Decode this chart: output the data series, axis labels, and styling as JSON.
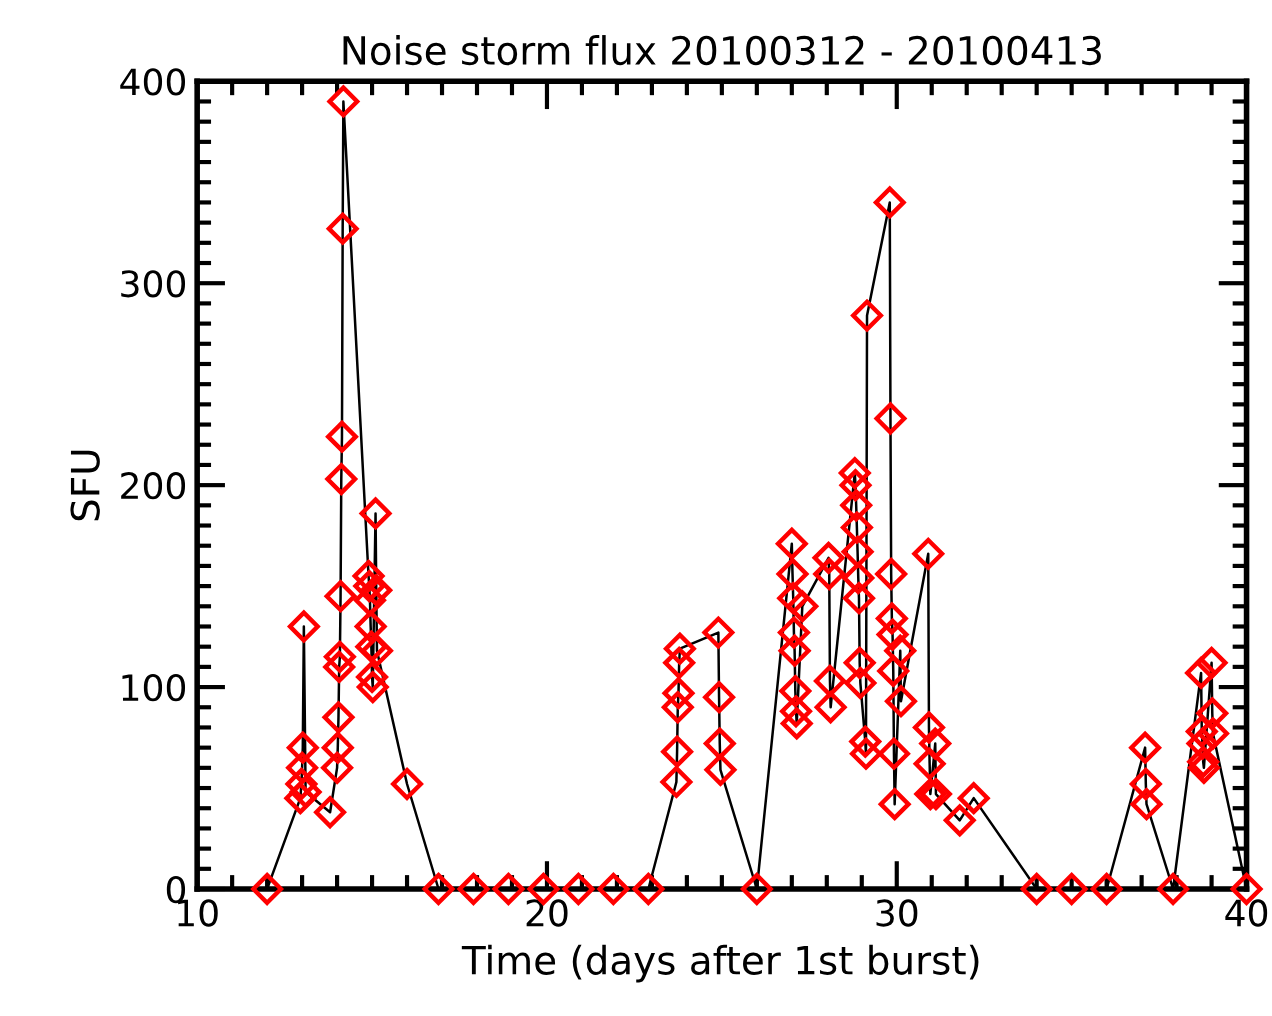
{
  "chart_data": {
    "type": "line",
    "title": "Noise storm flux 20100312 - 20100413",
    "xlabel": "Time (days after 1st burst)",
    "ylabel": "SFU",
    "xlim": [
      10,
      40
    ],
    "ylim": [
      0,
      400
    ],
    "xticks": [
      10,
      20,
      30,
      40
    ],
    "yticks": [
      0,
      100,
      200,
      300,
      400
    ],
    "marker": "diamond",
    "line_style": "solid",
    "grid": false,
    "series": [
      {
        "color": "#ff0000",
        "x": [
          12.0,
          12.95,
          12.98,
          13.0,
          13.02,
          13.05,
          13.1,
          13.8,
          14.0,
          14.02,
          14.04,
          14.06,
          14.08,
          14.1,
          14.12,
          14.14,
          14.16,
          14.18,
          14.9,
          14.92,
          14.94,
          14.96,
          14.98,
          15.0,
          15.02,
          15.1,
          15.12,
          15.14,
          16.0,
          16.9,
          17.9,
          18.9,
          19.9,
          20.9,
          21.9,
          22.9,
          23.7,
          23.72,
          23.74,
          23.76,
          23.78,
          23.8,
          24.9,
          24.92,
          24.94,
          24.96,
          26.0,
          27.0,
          27.02,
          27.04,
          27.06,
          27.08,
          27.1,
          27.12,
          27.14,
          27.3,
          28.05,
          28.07,
          28.09,
          28.11,
          28.8,
          28.82,
          28.84,
          28.86,
          28.88,
          28.9,
          28.92,
          28.94,
          28.96,
          29.1,
          29.12,
          29.15,
          29.8,
          29.82,
          29.84,
          29.86,
          29.88,
          29.9,
          29.92,
          29.94,
          30.1,
          30.12,
          30.9,
          30.92,
          30.94,
          30.96,
          31.1,
          31.12,
          31.8,
          32.2,
          34.0,
          35.0,
          36.0,
          37.1,
          37.12,
          37.14,
          37.9,
          38.7,
          38.72,
          38.74,
          38.76,
          38.78,
          39.0,
          39.02,
          39.04,
          40.0
        ],
        "values": [
          0,
          45,
          52,
          60,
          70,
          130,
          48,
          38,
          60,
          70,
          85,
          110,
          115,
          145,
          203,
          224,
          327,
          390,
          155,
          150,
          143,
          130,
          120,
          105,
          100,
          186,
          148,
          118,
          52,
          0,
          0,
          0,
          0,
          0,
          0,
          0,
          53,
          68,
          90,
          97,
          112,
          119,
          127,
          95,
          72,
          59,
          0,
          171,
          156,
          144,
          127,
          118,
          98,
          88,
          82,
          140,
          164,
          156,
          103,
          90,
          206,
          200,
          190,
          179,
          167,
          154,
          144,
          112,
          102,
          73,
          67,
          284,
          340,
          233,
          156,
          134,
          126,
          108,
          67,
          42,
          118,
          93,
          166,
          80,
          62,
          47,
          72,
          47,
          34,
          45,
          0,
          0,
          0,
          70,
          52,
          42,
          0,
          107,
          78,
          72,
          63,
          60,
          112,
          87,
          77,
          0
        ]
      }
    ]
  }
}
